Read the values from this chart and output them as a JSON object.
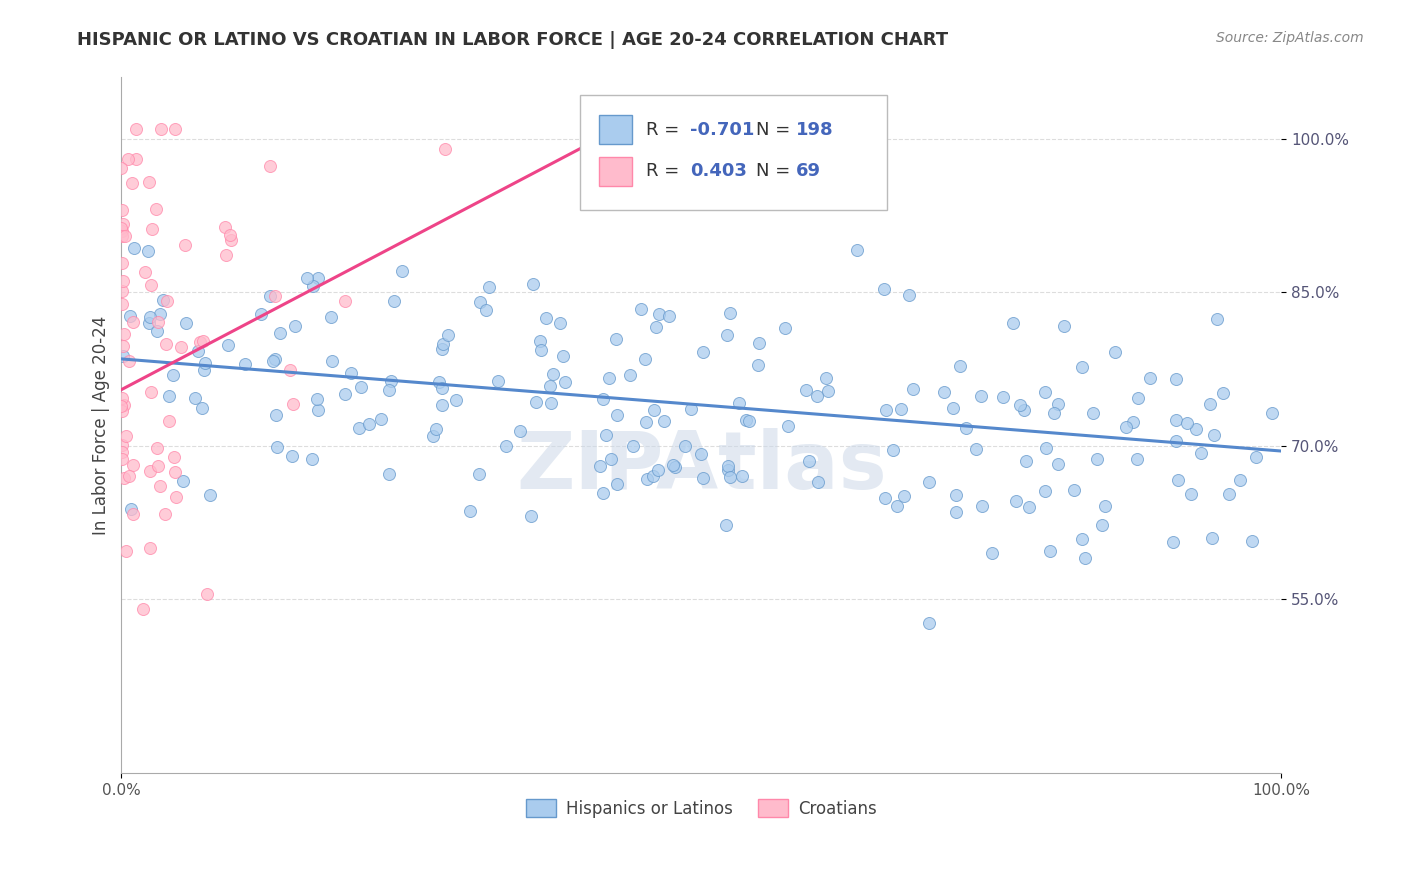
{
  "title": "HISPANIC OR LATINO VS CROATIAN IN LABOR FORCE | AGE 20-24 CORRELATION CHART",
  "source": "Source: ZipAtlas.com",
  "ylabel": "In Labor Force | Age 20-24",
  "xlim": [
    0.0,
    1.0
  ],
  "ylim": [
    0.38,
    1.06
  ],
  "yticks": [
    0.55,
    0.7,
    0.85,
    1.0
  ],
  "ytick_labels": [
    "55.0%",
    "70.0%",
    "85.0%",
    "100.0%"
  ],
  "blue_R": -0.701,
  "blue_N": 198,
  "pink_R": 0.403,
  "pink_N": 69,
  "blue_color": "#aaccee",
  "pink_color": "#ffbbcc",
  "blue_edge_color": "#6699cc",
  "pink_edge_color": "#ff88aa",
  "blue_line_color": "#5588cc",
  "pink_line_color": "#ee4488",
  "legend_label_blue": "Hispanics or Latinos",
  "legend_label_pink": "Croatians",
  "watermark": "ZIPAtlas",
  "background_color": "#ffffff",
  "grid_color": "#dddddd",
  "title_fontsize": 13,
  "axis_label_fontsize": 12,
  "tick_fontsize": 11,
  "blue_line_start_y": 0.785,
  "blue_line_end_y": 0.695,
  "pink_line_start_x": 0.0,
  "pink_line_start_y": 0.755,
  "pink_line_end_x": 0.42,
  "pink_line_end_y": 1.005
}
